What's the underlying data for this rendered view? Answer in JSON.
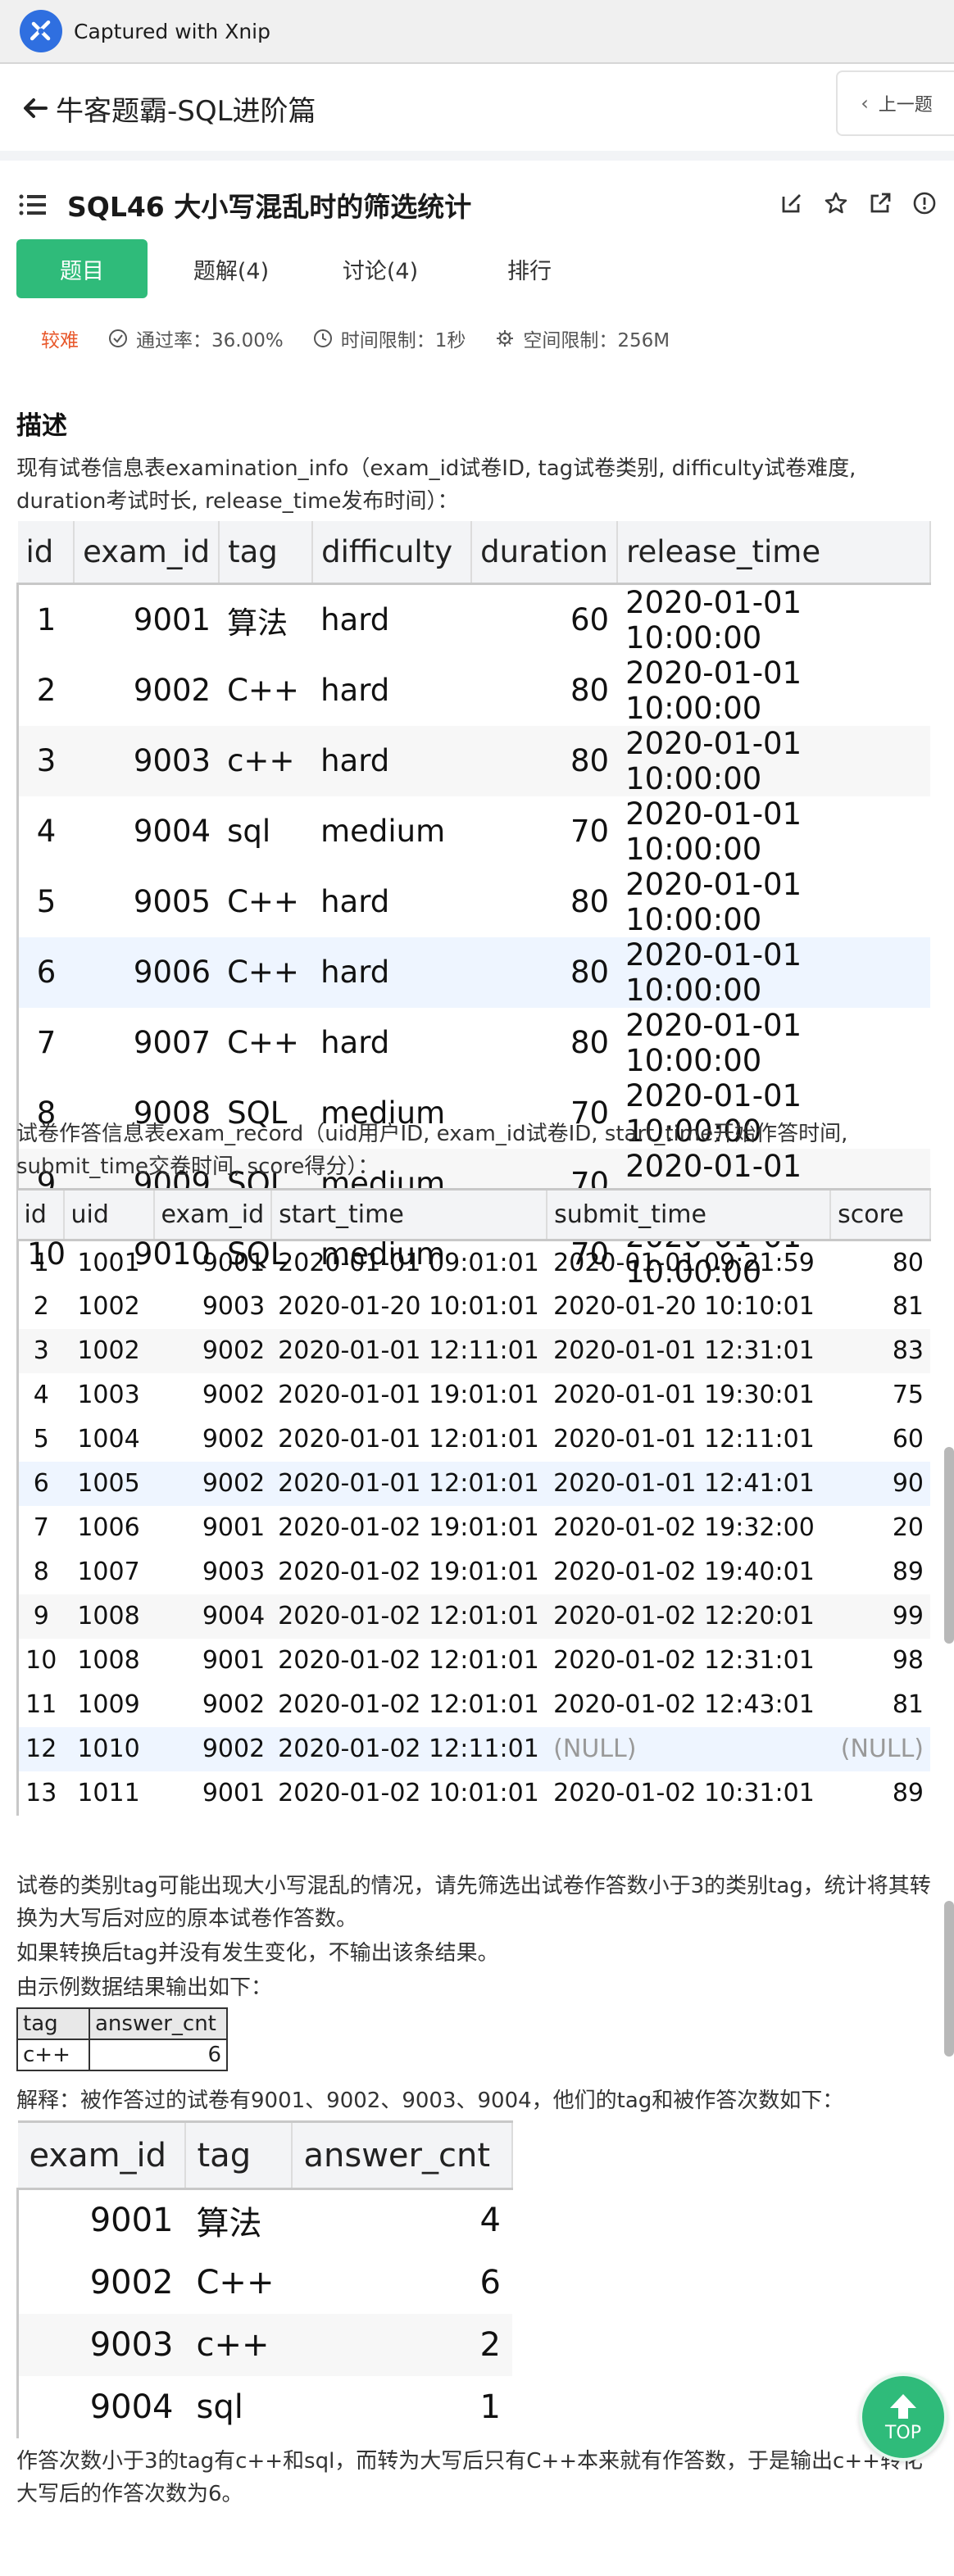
{
  "capture_bar": {
    "title": "Captured with Xnip"
  },
  "topnav": {
    "title": "牛客题霸-SQL进阶篇",
    "prev_label": "上一题"
  },
  "problem": {
    "title": "SQL46  大小写混乱时的筛选统计",
    "tabs": [
      {
        "label": "题目"
      },
      {
        "label": "题解(4)"
      },
      {
        "label": "讨论(4)"
      },
      {
        "label": "排行"
      }
    ],
    "difficulty": "较难",
    "pass_rate": "通过率：36.00%",
    "time_limit": "时间限制：1秒",
    "space_limit": "空间限制：256M"
  },
  "desc": {
    "heading": "描述",
    "intro1": "现有试卷信息表examination_info（exam_id试卷ID, tag试卷类别, difficulty试卷难度, duration考试时长, release_time发布时间）：",
    "intro2": "试卷作答信息表exam_record（uid用户ID, exam_id试卷ID, start_time开始作答时间, submit_time交卷时间, score得分）：",
    "task1": "试卷的类别tag可能出现大小写混乱的情况，请先筛选出试卷作答数小于3的类别tag，统计将其转换为大写后对应的原本试卷作答数。",
    "task2": "如果转换后tag并没有发生变化，不输出该条结果。",
    "task3": "由示例数据结果输出如下：",
    "explain": "解释：被作答过的试卷有9001、9002、9003、9004，他们的tag和被作答次数如下：",
    "conclusion": "作答次数小于3的tag有c++和sql，而转为大写后只有C++本来就有作答数，于是输出c++转化大写后的作答次数为6。"
  },
  "examination_info": {
    "headers": [
      "id",
      "exam_id",
      "tag",
      "difficulty",
      "duration",
      "release_time"
    ],
    "rows": [
      [
        "1",
        "9001",
        "算法",
        "hard",
        "60",
        "2020-01-01 10:00:00"
      ],
      [
        "2",
        "9002",
        "C++",
        "hard",
        "80",
        "2020-01-01 10:00:00"
      ],
      [
        "3",
        "9003",
        "c++",
        "hard",
        "80",
        "2020-01-01 10:00:00"
      ],
      [
        "4",
        "9004",
        "sql",
        "medium",
        "70",
        "2020-01-01 10:00:00"
      ],
      [
        "5",
        "9005",
        "C++",
        "hard",
        "80",
        "2020-01-01 10:00:00"
      ],
      [
        "6",
        "9006",
        "C++",
        "hard",
        "80",
        "2020-01-01 10:00:00"
      ],
      [
        "7",
        "9007",
        "C++",
        "hard",
        "80",
        "2020-01-01 10:00:00"
      ],
      [
        "8",
        "9008",
        "SQL",
        "medium",
        "70",
        "2020-01-01 10:00:00"
      ],
      [
        "9",
        "9009",
        "SQL",
        "medium",
        "70",
        "2020-01-01 10:00:00"
      ],
      [
        "10",
        "9010",
        "SQL",
        "medium",
        "70",
        "2020-01-01 10:00:00"
      ]
    ]
  },
  "exam_record": {
    "headers": [
      "id",
      "uid",
      "exam_id",
      "start_time",
      "submit_time",
      "score"
    ],
    "rows": [
      [
        "1",
        "1001",
        "9001",
        "2020-01-01 09:01:01",
        "2020-01-01 09:21:59",
        "80"
      ],
      [
        "2",
        "1002",
        "9003",
        "2020-01-20 10:01:01",
        "2020-01-20 10:10:01",
        "81"
      ],
      [
        "3",
        "1002",
        "9002",
        "2020-01-01 12:11:01",
        "2020-01-01 12:31:01",
        "83"
      ],
      [
        "4",
        "1003",
        "9002",
        "2020-01-01 19:01:01",
        "2020-01-01 19:30:01",
        "75"
      ],
      [
        "5",
        "1004",
        "9002",
        "2020-01-01 12:01:01",
        "2020-01-01 12:11:01",
        "60"
      ],
      [
        "6",
        "1005",
        "9002",
        "2020-01-01 12:01:01",
        "2020-01-01 12:41:01",
        "90"
      ],
      [
        "7",
        "1006",
        "9001",
        "2020-01-02 19:01:01",
        "2020-01-02 19:32:00",
        "20"
      ],
      [
        "8",
        "1007",
        "9003",
        "2020-01-02 19:01:01",
        "2020-01-02 19:40:01",
        "89"
      ],
      [
        "9",
        "1008",
        "9004",
        "2020-01-02 12:01:01",
        "2020-01-02 12:20:01",
        "99"
      ],
      [
        "10",
        "1008",
        "9001",
        "2020-01-02 12:01:01",
        "2020-01-02 12:31:01",
        "98"
      ],
      [
        "11",
        "1009",
        "9002",
        "2020-01-02 12:01:01",
        "2020-01-02 12:43:01",
        "81"
      ],
      [
        "12",
        "1010",
        "9002",
        "2020-01-02 12:11:01",
        "(NULL)",
        "(NULL)"
      ],
      [
        "13",
        "1011",
        "9001",
        "2020-01-02 10:01:01",
        "2020-01-02 10:31:01",
        "89"
      ]
    ]
  },
  "result_table": {
    "headers": [
      "tag",
      "answer_cnt"
    ],
    "rows": [
      [
        "c++",
        "6"
      ]
    ]
  },
  "tag_counts": {
    "headers": [
      "exam_id",
      "tag",
      "answer_cnt"
    ],
    "rows": [
      [
        "9001",
        "算法",
        "4"
      ],
      [
        "9002",
        "C++",
        "6"
      ],
      [
        "9003",
        "c++",
        "2"
      ],
      [
        "9004",
        "sql",
        "1"
      ]
    ]
  },
  "top_button": {
    "label": "TOP"
  },
  "colors": {
    "accent": "#2fbb7a",
    "difficulty": "#e8572a"
  }
}
